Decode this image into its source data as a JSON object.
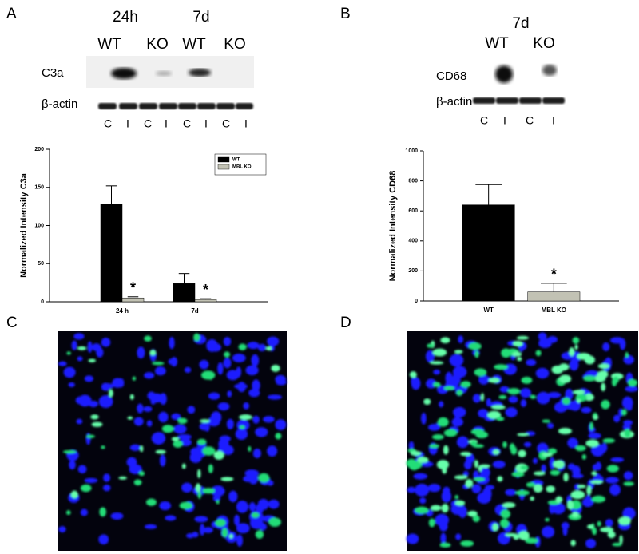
{
  "panels": {
    "A": {
      "letter": "A",
      "times": [
        "24h",
        "7d"
      ],
      "genotypes": [
        "WT",
        "KO",
        "WT",
        "KO"
      ],
      "rows": [
        "C3a",
        "β-actin"
      ],
      "lanes": [
        "C",
        "I",
        "C",
        "I",
        "C",
        "I",
        "C",
        "I"
      ]
    },
    "B": {
      "letter": "B",
      "times": [
        "7d"
      ],
      "genotypes": [
        "WT",
        "KO"
      ],
      "rows": [
        "CD68",
        "β-actin"
      ],
      "lanes": [
        "C",
        "I",
        "C",
        "I"
      ]
    },
    "C": {
      "letter": "C"
    },
    "D": {
      "letter": "D"
    }
  },
  "chart_data": [
    {
      "type": "bar",
      "y_label": "Normalized Intensity C3a",
      "categories": [
        "24 h",
        "7d"
      ],
      "series": [
        {
          "name": "WT",
          "color": "#000000",
          "values": [
            128,
            24
          ],
          "errors": [
            24,
            13
          ]
        },
        {
          "name": "MBL KO",
          "color": "#c2c2b4",
          "values": [
            5,
            3
          ],
          "errors": [
            1.5,
            1
          ],
          "significance": [
            "*",
            "*"
          ]
        }
      ],
      "ylim": [
        0,
        200
      ],
      "yticks": [
        0,
        50,
        100,
        150,
        200
      ],
      "legend": "upper right"
    },
    {
      "type": "bar",
      "y_label": "Normalized Intensity CD68",
      "categories": [
        "WT",
        "MBL KO"
      ],
      "values": [
        640,
        60
      ],
      "errors": [
        135,
        58
      ],
      "colors": [
        "#000000",
        "#c2c2b4"
      ],
      "significance": [
        null,
        "*"
      ],
      "ylim": [
        0,
        1000
      ],
      "yticks": [
        0,
        200,
        400,
        600,
        800,
        1000
      ]
    }
  ]
}
